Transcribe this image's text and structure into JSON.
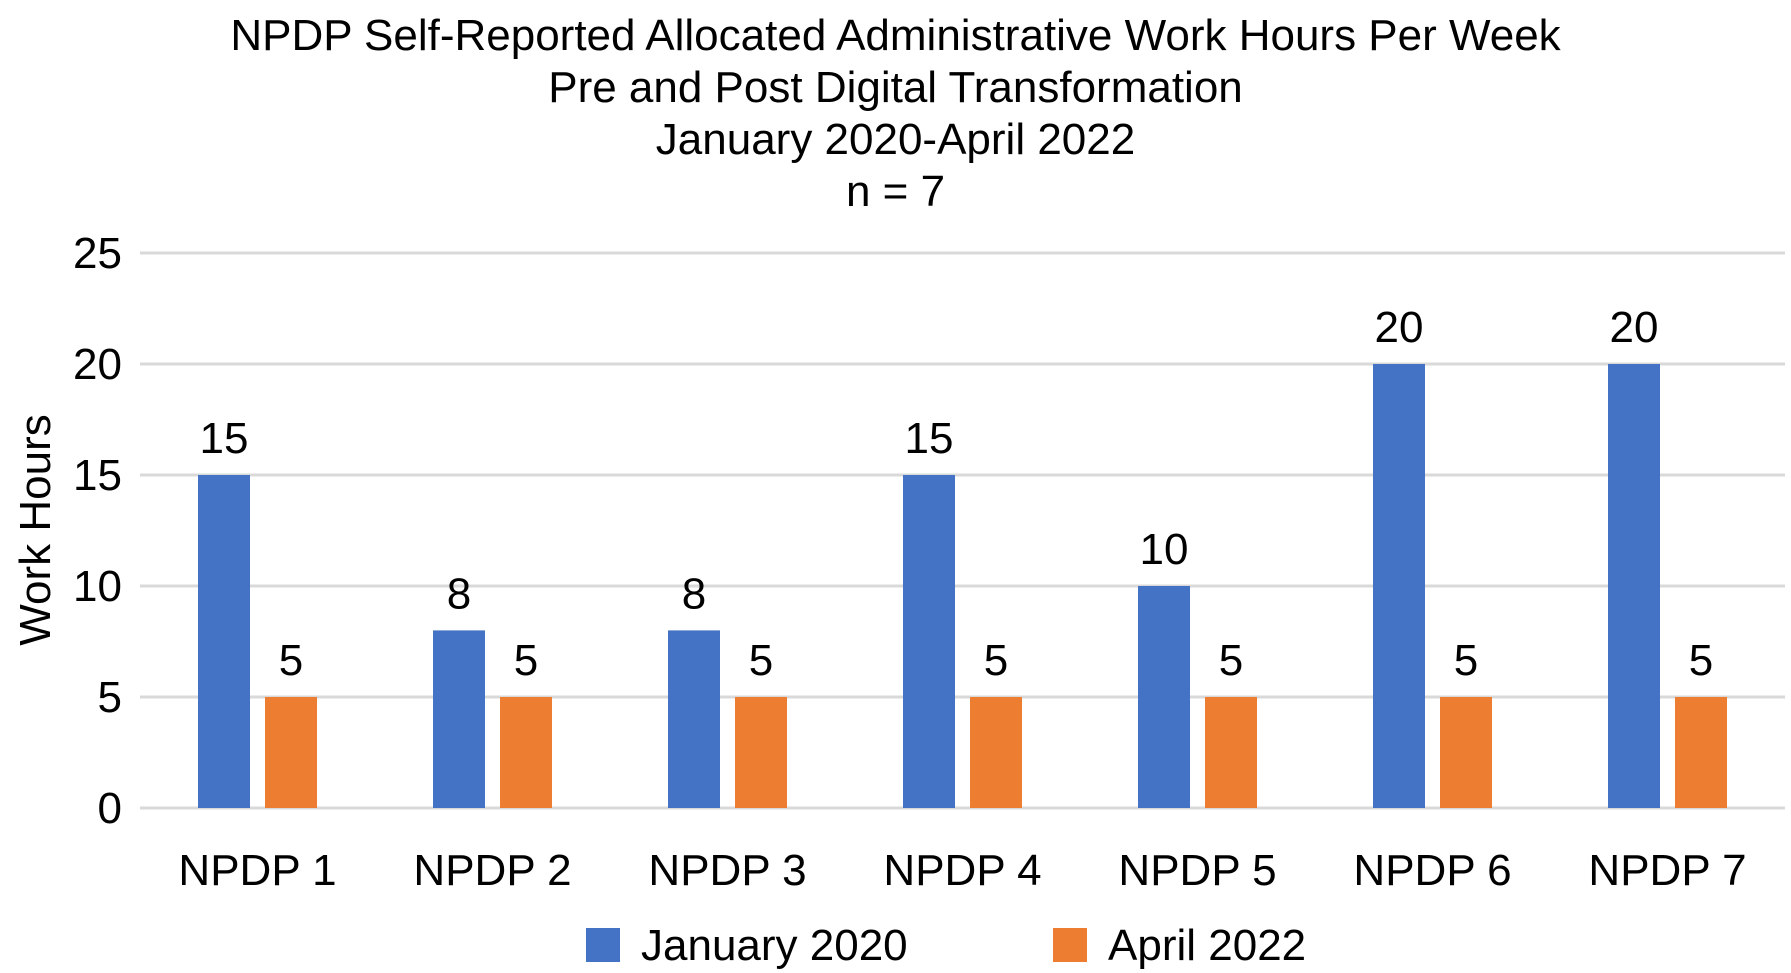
{
  "chart_data": {
    "type": "bar",
    "title_lines": [
      "NPDP Self-Reported Allocated Administrative Work Hours Per Week",
      "Pre and Post Digital Transformation",
      "January 2020-April 2022",
      "n = 7"
    ],
    "xlabel": "",
    "ylabel": "Work Hours",
    "ylim": [
      0,
      25
    ],
    "yticks": [
      "0",
      "5",
      "10",
      "15",
      "20",
      "25"
    ],
    "categories": [
      "NPDP 1",
      "NPDP 2",
      "NPDP 3",
      "NPDP 4",
      "NPDP 5",
      "NPDP 6",
      "NPDP 7"
    ],
    "series": [
      {
        "name": "January 2020",
        "color": "#4472C4",
        "values": [
          15,
          8,
          8,
          15,
          10,
          20,
          20
        ]
      },
      {
        "name": "April 2022",
        "color": "#ED7D31",
        "values": [
          5,
          5,
          5,
          5,
          5,
          5,
          5
        ]
      }
    ],
    "data_labels": true,
    "grid": true,
    "legend_position": "bottom"
  }
}
